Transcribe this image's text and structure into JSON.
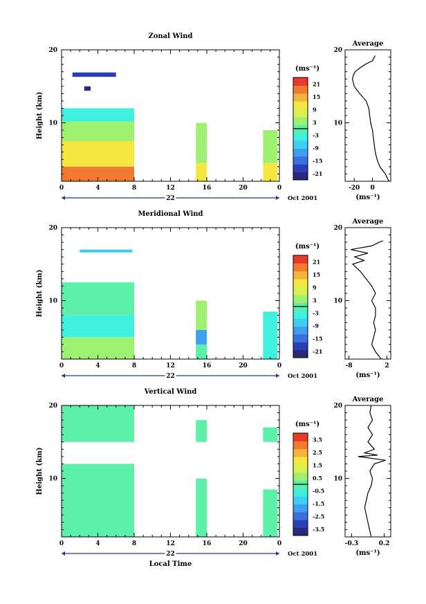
{
  "chart_data": [
    {
      "type": "heatmap",
      "title": "Zonal Wind",
      "ylabel": "Height (km)",
      "xlabel": "",
      "xlim": [
        0,
        24
      ],
      "ylim": [
        2,
        20
      ],
      "x_ticks": [
        "0",
        "4",
        "8",
        "12",
        "16",
        "20",
        "0"
      ],
      "y_ticks": [
        "10",
        "20"
      ],
      "date_label": "22",
      "month_label": "Oct 2001",
      "colorbar": {
        "unit": "(ms⁻¹)",
        "ticks": [
          "21",
          "15",
          "9",
          "3",
          "-3",
          "-9",
          "-15",
          "-21"
        ],
        "range": [
          -24,
          24
        ]
      },
      "data_blocks": [
        {
          "x": [
            0,
            8
          ],
          "y": [
            2.0,
            4.0
          ],
          "value": 20
        },
        {
          "x": [
            0,
            8
          ],
          "y": [
            4.0,
            7.5
          ],
          "value": 11
        },
        {
          "x": [
            0,
            8
          ],
          "y": [
            7.5,
            10.2
          ],
          "value": 3
        },
        {
          "x": [
            0,
            8
          ],
          "y": [
            10.2,
            12.0
          ],
          "value": -3
        },
        {
          "x": [
            14.8,
            16
          ],
          "y": [
            2.0,
            4.5
          ],
          "value": 12
        },
        {
          "x": [
            14.8,
            16
          ],
          "y": [
            4.5,
            10.0
          ],
          "value": 5
        },
        {
          "x": [
            22.2,
            23.8
          ],
          "y": [
            2.0,
            4.5
          ],
          "value": 12
        },
        {
          "x": [
            22.2,
            23.8
          ],
          "y": [
            4.5,
            9.0
          ],
          "value": 4
        },
        {
          "x": [
            1.2,
            6.0
          ],
          "y": [
            16.3,
            16.9
          ],
          "value": -20
        },
        {
          "x": [
            2.5,
            3.2
          ],
          "y": [
            14.4,
            15.0
          ],
          "value": -24
        }
      ],
      "average": {
        "title": "Average",
        "xlabel": "(ms⁻¹)",
        "x_ticks": [
          "-20",
          "0"
        ],
        "xlim": [
          -30,
          20
        ],
        "y_ticks": [
          "10",
          "20"
        ],
        "ylim": [
          2,
          20
        ],
        "profile": [
          {
            "z": 2.0,
            "v": 18
          },
          {
            "z": 3.0,
            "v": 14
          },
          {
            "z": 4.0,
            "v": 8
          },
          {
            "z": 5.0,
            "v": 5
          },
          {
            "z": 6.0,
            "v": 3
          },
          {
            "z": 7.0,
            "v": 2
          },
          {
            "z": 8.0,
            "v": 1
          },
          {
            "z": 9.0,
            "v": 0
          },
          {
            "z": 10.0,
            "v": -2
          },
          {
            "z": 11.0,
            "v": -3
          },
          {
            "z": 12.0,
            "v": -4
          },
          {
            "z": 13.0,
            "v": -7
          },
          {
            "z": 14.0,
            "v": -14
          },
          {
            "z": 15.0,
            "v": -20
          },
          {
            "z": 16.0,
            "v": -22
          },
          {
            "z": 16.5,
            "v": -21
          },
          {
            "z": 17.0,
            "v": -19
          },
          {
            "z": 17.5,
            "v": -14
          },
          {
            "z": 18.0,
            "v": -8
          },
          {
            "z": 18.5,
            "v": 0
          },
          {
            "z": 19.0,
            "v": 2
          },
          {
            "z": 19.2,
            "v": 3
          }
        ]
      }
    },
    {
      "type": "heatmap",
      "title": "Meridional Wind",
      "ylabel": "Height (km)",
      "xlabel": "",
      "xlim": [
        0,
        24
      ],
      "ylim": [
        2,
        20
      ],
      "x_ticks": [
        "0",
        "4",
        "8",
        "12",
        "16",
        "20",
        "0"
      ],
      "y_ticks": [
        "10",
        "20"
      ],
      "date_label": "22",
      "month_label": "Oct 2001",
      "colorbar": {
        "unit": "(ms⁻¹)",
        "ticks": [
          "21",
          "15",
          "9",
          "3",
          "-3",
          "-9",
          "-15",
          "-21"
        ],
        "range": [
          -24,
          24
        ]
      },
      "data_blocks": [
        {
          "x": [
            0,
            8
          ],
          "y": [
            2.0,
            5.0
          ],
          "value": 2
        },
        {
          "x": [
            0,
            8
          ],
          "y": [
            5.0,
            8.0
          ],
          "value": -4
        },
        {
          "x": [
            0,
            8
          ],
          "y": [
            8.0,
            11.0
          ],
          "value": 1
        },
        {
          "x": [
            0,
            8
          ],
          "y": [
            11.0,
            12.5
          ],
          "value": 0
        },
        {
          "x": [
            14.8,
            16
          ],
          "y": [
            2.0,
            4.0
          ],
          "value": 1
        },
        {
          "x": [
            14.8,
            16
          ],
          "y": [
            4.0,
            6.0
          ],
          "value": -10
        },
        {
          "x": [
            14.8,
            16
          ],
          "y": [
            6.0,
            10.0
          ],
          "value": 3
        },
        {
          "x": [
            22.2,
            23.8
          ],
          "y": [
            2.0,
            8.5
          ],
          "value": -4
        },
        {
          "x": [
            2.0,
            7.8
          ],
          "y": [
            16.6,
            17.0
          ],
          "value": -7
        }
      ],
      "average": {
        "title": "Average",
        "xlabel": "(ms⁻¹)",
        "x_ticks": [
          "-8",
          "2"
        ],
        "xlim": [
          -9,
          3
        ],
        "y_ticks": [
          "10",
          "20"
        ],
        "ylim": [
          2,
          20
        ],
        "profile": [
          {
            "z": 2.0,
            "v": 0.5
          },
          {
            "z": 3.0,
            "v": -1.0
          },
          {
            "z": 4.0,
            "v": -2.0
          },
          {
            "z": 5.0,
            "v": -1.5
          },
          {
            "z": 6.0,
            "v": -1.0
          },
          {
            "z": 7.0,
            "v": -1.5
          },
          {
            "z": 8.0,
            "v": -1.0
          },
          {
            "z": 9.0,
            "v": -1.0
          },
          {
            "z": 10.0,
            "v": -2.0
          },
          {
            "z": 11.0,
            "v": -1.0
          },
          {
            "z": 12.0,
            "v": -2.0
          },
          {
            "z": 13.0,
            "v": -3.5
          },
          {
            "z": 14.0,
            "v": -5.0
          },
          {
            "z": 15.0,
            "v": -7.0
          },
          {
            "z": 15.5,
            "v": -4.0
          },
          {
            "z": 16.0,
            "v": -6.5
          },
          {
            "z": 16.5,
            "v": -3.0
          },
          {
            "z": 17.0,
            "v": -7.5
          },
          {
            "z": 17.5,
            "v": -2.0
          },
          {
            "z": 18.0,
            "v": 0.0
          },
          {
            "z": 18.2,
            "v": 1.0
          }
        ]
      }
    },
    {
      "type": "heatmap",
      "title": "Vertical Wind",
      "ylabel": "Height (km)",
      "xlabel": "Local Time",
      "xlim": [
        0,
        24
      ],
      "ylim": [
        2,
        20
      ],
      "x_ticks": [
        "0",
        "4",
        "8",
        "12",
        "16",
        "20",
        "0"
      ],
      "y_ticks": [
        "10",
        "20"
      ],
      "date_label": "22",
      "month_label": "Oct 2001",
      "colorbar": {
        "unit": "(ms⁻¹)",
        "ticks": [
          "3.5",
          "2.5",
          "1.5",
          "0.5",
          "-0.5",
          "-1.5",
          "-2.5",
          "-3.5"
        ],
        "range": [
          -4,
          4
        ]
      },
      "data_blocks": [
        {
          "x": [
            0,
            8
          ],
          "y": [
            2.0,
            12.0
          ],
          "value": 0
        },
        {
          "x": [
            0,
            8
          ],
          "y": [
            15.0,
            20.0
          ],
          "value": 0
        },
        {
          "x": [
            14.8,
            16
          ],
          "y": [
            2.0,
            10.0
          ],
          "value": 0
        },
        {
          "x": [
            14.8,
            16
          ],
          "y": [
            15.0,
            18.0
          ],
          "value": 0
        },
        {
          "x": [
            22.2,
            23.8
          ],
          "y": [
            2.0,
            8.5
          ],
          "value": 0
        },
        {
          "x": [
            22.2,
            23.8
          ],
          "y": [
            15.0,
            17.0
          ],
          "value": 0
        }
      ],
      "average": {
        "title": "Average",
        "xlabel": "(ms⁻¹)",
        "x_ticks": [
          "-0.3",
          "0.2"
        ],
        "xlim": [
          -0.4,
          0.3
        ],
        "y_ticks": [
          "10",
          "20"
        ],
        "ylim": [
          2,
          20
        ],
        "profile": [
          {
            "z": 2.0,
            "v": 0.0
          },
          {
            "z": 4.0,
            "v": -0.05
          },
          {
            "z": 6.0,
            "v": -0.1
          },
          {
            "z": 8.0,
            "v": -0.05
          },
          {
            "z": 9.0,
            "v": 0.0
          },
          {
            "z": 10.0,
            "v": 0.02
          },
          {
            "z": 11.0,
            "v": -0.02
          },
          {
            "z": 12.0,
            "v": 0.05
          },
          {
            "z": 12.5,
            "v": 0.22
          },
          {
            "z": 13.0,
            "v": -0.2
          },
          {
            "z": 13.2,
            "v": 0.1
          },
          {
            "z": 13.5,
            "v": -0.1
          },
          {
            "z": 14.0,
            "v": 0.05
          },
          {
            "z": 15.0,
            "v": -0.05
          },
          {
            "z": 16.0,
            "v": 0.02
          },
          {
            "z": 17.0,
            "v": -0.05
          },
          {
            "z": 18.0,
            "v": 0.02
          },
          {
            "z": 19.0,
            "v": -0.02
          },
          {
            "z": 20.0,
            "v": 0.0
          }
        ]
      }
    }
  ]
}
